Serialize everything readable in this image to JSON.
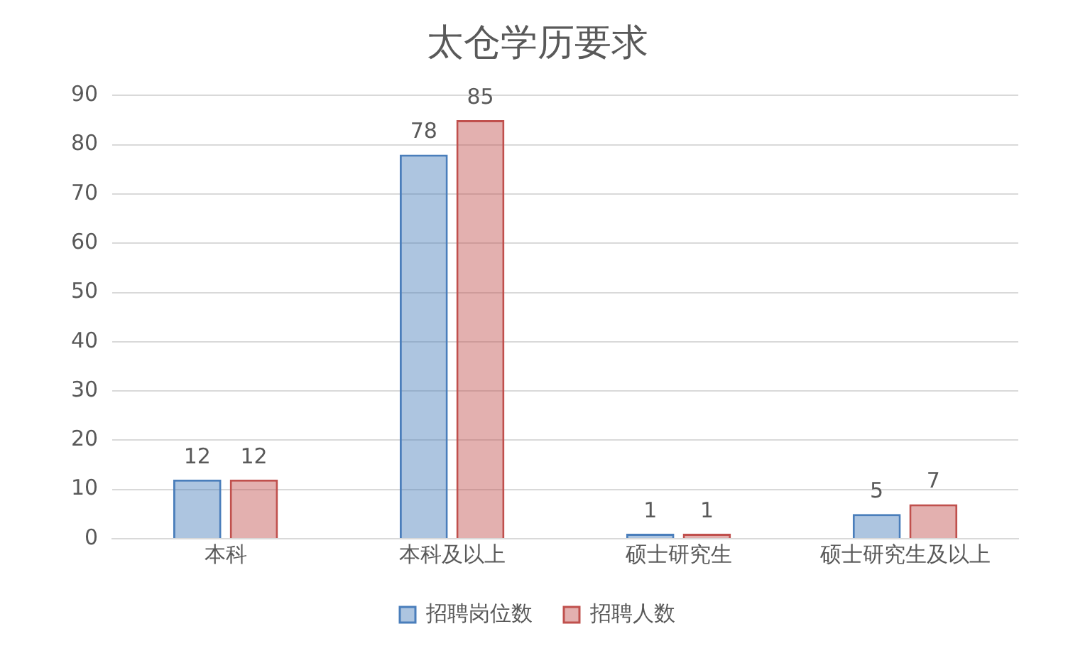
{
  "chart_data": {
    "type": "bar",
    "title": "太仓学历要求",
    "categories": [
      "本科",
      "本科及以上",
      "硕士研究生",
      "硕士研究生及以上"
    ],
    "series": [
      {
        "name": "招聘岗位数",
        "color": "#4a7ebb",
        "values": [
          12,
          78,
          1,
          5
        ]
      },
      {
        "name": "招聘人数",
        "color": "#c0504d",
        "values": [
          12,
          85,
          1,
          7
        ]
      }
    ],
    "ylim": [
      0,
      90
    ],
    "yticks": [
      0,
      10,
      20,
      30,
      40,
      50,
      60,
      70,
      80,
      90
    ],
    "grid": "y",
    "legend": "bottom",
    "data_labels": true
  }
}
